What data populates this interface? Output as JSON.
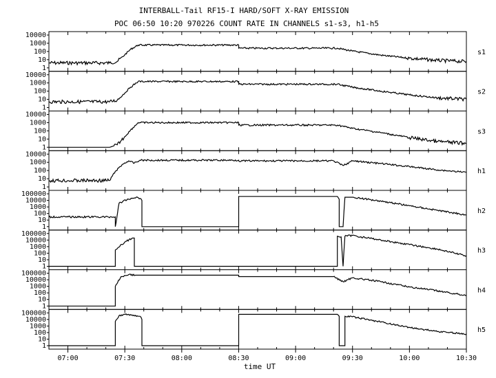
{
  "figure": {
    "title": "INTERBALL-Tail RF15-I HARD/SOFT X-RAY EMISSION",
    "subtitle": "POC 06:50 10:20 970226  COUNT RATE IN CHANNELS s1-s3, h1-h5",
    "xlabel": "time UT",
    "x_ticks": [
      "07:00",
      "07:30",
      "08:00",
      "08:30",
      "09:00",
      "09:30",
      "10:00",
      "10:30"
    ]
  },
  "colors": {
    "line": "#000000",
    "background": "#ffffff"
  },
  "chart_data": [
    {
      "type": "line",
      "channel": "s1",
      "xlim": [
        "06:50",
        "10:30"
      ],
      "ylog": true,
      "y_ticks": [
        "10000",
        "1000",
        "100",
        "10",
        "1"
      ],
      "x": [
        "06:50",
        "07:22",
        "07:26",
        "07:30",
        "07:33",
        "07:37",
        "08:30",
        "08:30",
        "09:22",
        "09:30",
        "09:45",
        "10:00",
        "10:15",
        "10:30"
      ],
      "y": [
        4,
        4,
        6,
        40,
        180,
        600,
        600,
        250,
        250,
        110,
        35,
        15,
        8,
        6
      ]
    },
    {
      "type": "line",
      "channel": "s2",
      "xlim": [
        "06:50",
        "10:30"
      ],
      "ylog": true,
      "y_ticks": [
        "10000",
        "1000",
        "100",
        "10",
        "1"
      ],
      "x": [
        "06:50",
        "07:22",
        "07:26",
        "07:30",
        "07:33",
        "07:37",
        "08:30",
        "08:30",
        "09:22",
        "09:30",
        "09:45",
        "10:00",
        "10:15",
        "10:30"
      ],
      "y": [
        5,
        5,
        8,
        60,
        300,
        1500,
        1500,
        700,
        700,
        300,
        100,
        35,
        15,
        10
      ]
    },
    {
      "type": "line",
      "channel": "s3",
      "xlim": [
        "06:50",
        "10:30"
      ],
      "ylog": true,
      "y_ticks": [
        "10000",
        "1000",
        "100",
        "10",
        "1"
      ],
      "x": [
        "06:50",
        "07:22",
        "07:26",
        "07:30",
        "07:33",
        "07:37",
        "08:30",
        "08:30",
        "09:22",
        "09:30",
        "09:45",
        "10:00",
        "10:15",
        "10:30"
      ],
      "y": [
        1,
        1,
        2,
        20,
        120,
        1000,
        1000,
        500,
        500,
        200,
        60,
        15,
        5,
        3
      ]
    },
    {
      "type": "line",
      "channel": "h1",
      "xlim": [
        "06:50",
        "10:30"
      ],
      "ylog": true,
      "y_ticks": [
        "10000",
        "1000",
        "100",
        "10",
        "1"
      ],
      "x": [
        "06:50",
        "07:22",
        "07:25",
        "07:29",
        "07:32",
        "07:35",
        "07:38",
        "08:30",
        "08:30",
        "09:20",
        "09:25",
        "09:30",
        "09:45",
        "10:00",
        "10:15",
        "10:30"
      ],
      "y": [
        6,
        6,
        80,
        600,
        1500,
        800,
        1800,
        1800,
        1500,
        1500,
        400,
        1500,
        700,
        300,
        120,
        60
      ]
    },
    {
      "type": "line",
      "channel": "h2",
      "xlim": [
        "06:50",
        "10:30"
      ],
      "ylog": true,
      "y_ticks": [
        "100000",
        "10000",
        "1000",
        "100",
        "10",
        "1"
      ],
      "x": [
        "06:50",
        "07:25",
        "07:25",
        "07:27",
        "07:32",
        "07:36",
        "07:38",
        "07:39",
        "07:39",
        "08:30",
        "08:30",
        "09:22",
        "09:23",
        "09:23",
        "09:25",
        "09:26",
        "09:30",
        "09:45",
        "10:00",
        "10:15",
        "10:30"
      ],
      "y": [
        30,
        30,
        1,
        4000,
        15000,
        30000,
        20000,
        10000,
        1,
        1,
        40000,
        40000,
        15000,
        1,
        1,
        30000,
        30000,
        8000,
        1500,
        300,
        60
      ]
    },
    {
      "type": "line",
      "channel": "h3",
      "xlim": [
        "06:50",
        "10:30"
      ],
      "ylog": true,
      "y_ticks": [
        "100000",
        "10000",
        "1000",
        "100",
        "10",
        "1"
      ],
      "x": [
        "06:50",
        "07:25",
        "07:25",
        "07:30",
        "07:34",
        "07:35",
        "07:35",
        "09:22",
        "09:22",
        "09:24",
        "09:25",
        "09:26",
        "09:30",
        "09:45",
        "10:00",
        "10:15",
        "10:30"
      ],
      "y": [
        1,
        1,
        300,
        5000,
        20000,
        20000,
        1,
        1,
        40000,
        30000,
        1,
        40000,
        50000,
        10000,
        2000,
        400,
        40
      ]
    },
    {
      "type": "line",
      "channel": "h4",
      "xlim": [
        "06:50",
        "10:30"
      ],
      "ylog": true,
      "y_ticks": [
        "100000",
        "10000",
        "1000",
        "100",
        "10",
        "1"
      ],
      "x": [
        "06:50",
        "07:25",
        "07:25",
        "07:28",
        "07:32",
        "07:36",
        "08:30",
        "08:30",
        "09:20",
        "09:25",
        "09:30",
        "09:45",
        "10:00",
        "10:15",
        "10:30"
      ],
      "y": [
        1,
        1,
        1000,
        30000,
        60000,
        50000,
        50000,
        30000,
        30000,
        5000,
        20000,
        5000,
        800,
        200,
        40
      ]
    },
    {
      "type": "line",
      "channel": "h5",
      "xlim": [
        "06:50",
        "10:30"
      ],
      "ylog": true,
      "y_ticks": [
        "100000",
        "10000",
        "1000",
        "100",
        "10",
        "1"
      ],
      "x": [
        "06:50",
        "07:25",
        "07:25",
        "07:27",
        "07:32",
        "07:37",
        "07:38",
        "07:39",
        "07:39",
        "08:30",
        "08:30",
        "09:22",
        "09:23",
        "09:23",
        "09:26",
        "09:26",
        "09:30",
        "09:45",
        "10:00",
        "10:15",
        "10:30"
      ],
      "y": [
        1,
        1,
        5000,
        40000,
        60000,
        30000,
        30000,
        10000,
        1,
        1,
        60000,
        60000,
        30000,
        1,
        1,
        30000,
        25000,
        4000,
        600,
        150,
        60
      ]
    }
  ]
}
